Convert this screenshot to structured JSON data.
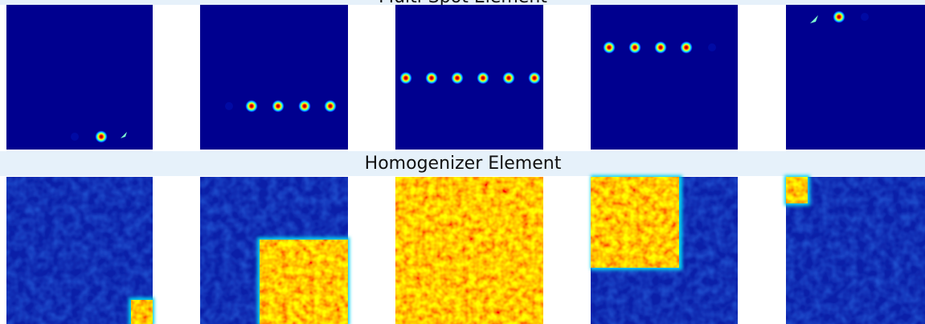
{
  "labels": {
    "top": "Multi-Spot Element",
    "bottom": "Homogenizer Element"
  }
}
